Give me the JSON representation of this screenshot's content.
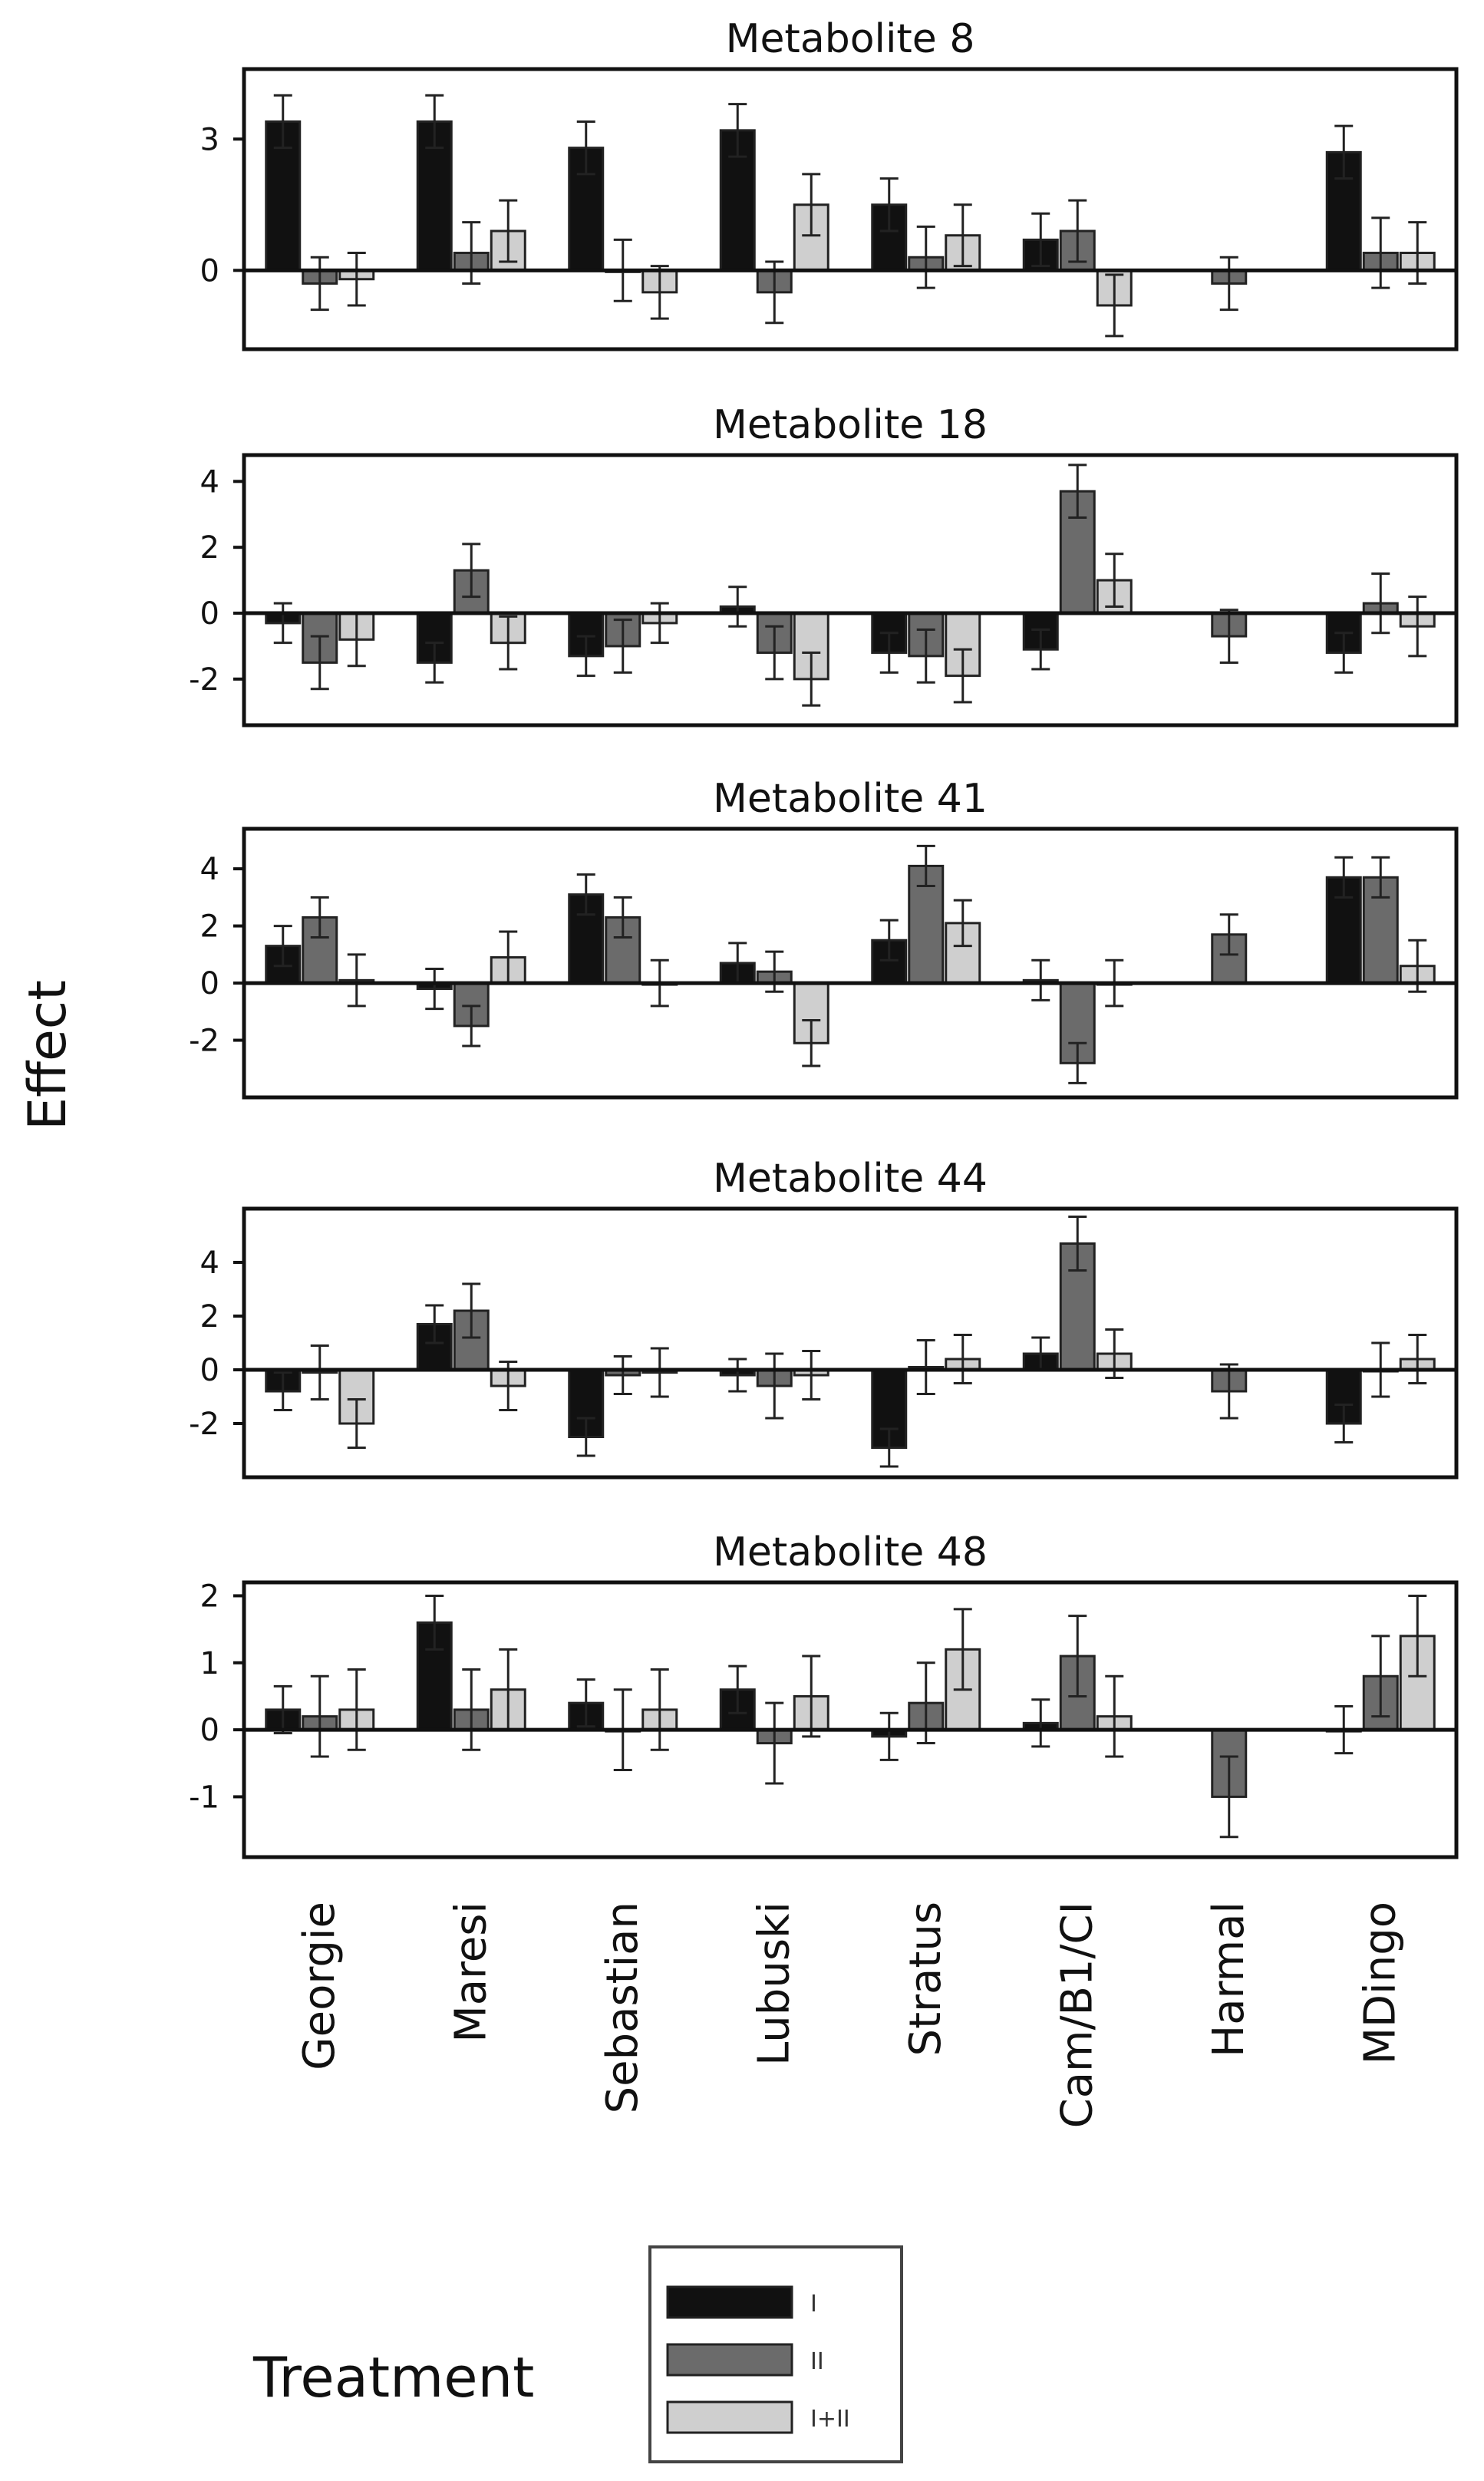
{
  "chart_data": {
    "type": "bar",
    "ylabel": "Effect",
    "categories": [
      "Georgie",
      "Maresi",
      "Sebastian",
      "Lubuski",
      "Stratus",
      "Cam/B1/CI",
      "Harmal",
      "MDingo"
    ],
    "legend": {
      "title": "Treatment",
      "entries": [
        "I",
        "II",
        "I+II"
      ]
    },
    "colors": {
      "I": "#111111",
      "II": "#6b6b6b",
      "I+II": "#cfcfcf"
    },
    "panels": [
      {
        "title": "Metabolite 8",
        "ylim": [
          -1.8,
          4.6
        ],
        "yticks": [
          0,
          3
        ],
        "series": [
          {
            "name": "I",
            "values": [
              3.4,
              3.4,
              2.8,
              3.2,
              1.5,
              0.7,
              null,
              2.7
            ],
            "errors": [
              0.6,
              0.6,
              0.6,
              0.6,
              0.6,
              0.6,
              null,
              0.6
            ]
          },
          {
            "name": "II",
            "values": [
              -0.3,
              0.4,
              0.0,
              -0.5,
              0.3,
              0.9,
              -0.3,
              0.4
            ],
            "errors": [
              0.6,
              0.7,
              0.7,
              0.7,
              0.7,
              0.7,
              0.6,
              0.8
            ]
          },
          {
            "name": "I+II",
            "values": [
              -0.2,
              0.9,
              -0.5,
              1.5,
              0.8,
              -0.8,
              null,
              0.4
            ],
            "errors": [
              0.6,
              0.7,
              0.6,
              0.7,
              0.7,
              0.7,
              null,
              0.7
            ]
          }
        ]
      },
      {
        "title": "Metabolite 18",
        "ylim": [
          -3.4,
          4.8
        ],
        "yticks": [
          -2,
          0,
          2,
          4
        ],
        "series": [
          {
            "name": "I",
            "values": [
              -0.3,
              -1.5,
              -1.3,
              0.2,
              -1.2,
              -1.1,
              null,
              -1.2
            ],
            "errors": [
              0.6,
              0.6,
              0.6,
              0.6,
              0.6,
              0.6,
              null,
              0.6
            ]
          },
          {
            "name": "II",
            "values": [
              -1.5,
              1.3,
              -1.0,
              -1.2,
              -1.3,
              3.7,
              -0.7,
              0.3
            ],
            "errors": [
              0.8,
              0.8,
              0.8,
              0.8,
              0.8,
              0.8,
              0.8,
              0.9
            ]
          },
          {
            "name": "I+II",
            "values": [
              -0.8,
              -0.9,
              -0.3,
              -2.0,
              -1.9,
              1.0,
              null,
              -0.4
            ],
            "errors": [
              0.8,
              0.8,
              0.6,
              0.8,
              0.8,
              0.8,
              null,
              0.9
            ]
          }
        ]
      },
      {
        "title": "Metabolite 41",
        "ylim": [
          -4.0,
          5.4
        ],
        "yticks": [
          -2,
          0,
          2,
          4
        ],
        "series": [
          {
            "name": "I",
            "values": [
              1.3,
              -0.2,
              3.1,
              0.7,
              1.5,
              0.1,
              null,
              3.7
            ],
            "errors": [
              0.7,
              0.7,
              0.7,
              0.7,
              0.7,
              0.7,
              null,
              0.7
            ]
          },
          {
            "name": "II",
            "values": [
              2.3,
              -1.5,
              2.3,
              0.4,
              4.1,
              -2.8,
              1.7,
              3.7
            ],
            "errors": [
              0.7,
              0.7,
              0.7,
              0.7,
              0.7,
              0.7,
              0.7,
              0.7
            ]
          },
          {
            "name": "I+II",
            "values": [
              0.1,
              0.9,
              0.0,
              -2.1,
              2.1,
              0.0,
              null,
              0.6
            ],
            "errors": [
              0.9,
              0.9,
              0.8,
              0.8,
              0.8,
              0.8,
              null,
              0.9
            ]
          }
        ]
      },
      {
        "title": "Metabolite 44",
        "ylim": [
          -4.0,
          6.0
        ],
        "yticks": [
          -2,
          0,
          2,
          4
        ],
        "series": [
          {
            "name": "I",
            "values": [
              -0.8,
              1.7,
              -2.5,
              -0.2,
              -2.9,
              0.6,
              null,
              -2.0
            ],
            "errors": [
              0.7,
              0.7,
              0.7,
              0.6,
              0.7,
              0.6,
              null,
              0.7
            ]
          },
          {
            "name": "II",
            "values": [
              -0.1,
              2.2,
              -0.2,
              -0.6,
              0.1,
              4.7,
              -0.8,
              0.0
            ],
            "errors": [
              1.0,
              1.0,
              0.7,
              1.2,
              1.0,
              1.0,
              1.0,
              1.0
            ]
          },
          {
            "name": "I+II",
            "values": [
              -2.0,
              -0.6,
              -0.1,
              -0.2,
              0.4,
              0.6,
              null,
              0.4
            ],
            "errors": [
              0.9,
              0.9,
              0.9,
              0.9,
              0.9,
              0.9,
              null,
              0.9
            ]
          }
        ]
      },
      {
        "title": "Metabolite 48",
        "ylim": [
          -1.9,
          2.2
        ],
        "yticks": [
          -1,
          0,
          1,
          2
        ],
        "series": [
          {
            "name": "I",
            "values": [
              0.3,
              1.6,
              0.4,
              0.6,
              -0.1,
              0.1,
              null,
              0.0
            ],
            "errors": [
              0.35,
              0.4,
              0.35,
              0.35,
              0.35,
              0.35,
              null,
              0.35
            ]
          },
          {
            "name": "II",
            "values": [
              0.2,
              0.3,
              0.0,
              -0.2,
              0.4,
              1.1,
              -1.0,
              0.8
            ],
            "errors": [
              0.6,
              0.6,
              0.6,
              0.6,
              0.6,
              0.6,
              0.6,
              0.6
            ]
          },
          {
            "name": "I+II",
            "values": [
              0.3,
              0.6,
              0.3,
              0.5,
              1.2,
              0.2,
              null,
              1.4
            ],
            "errors": [
              0.6,
              0.6,
              0.6,
              0.6,
              0.6,
              0.6,
              null,
              0.6
            ]
          }
        ]
      }
    ]
  }
}
